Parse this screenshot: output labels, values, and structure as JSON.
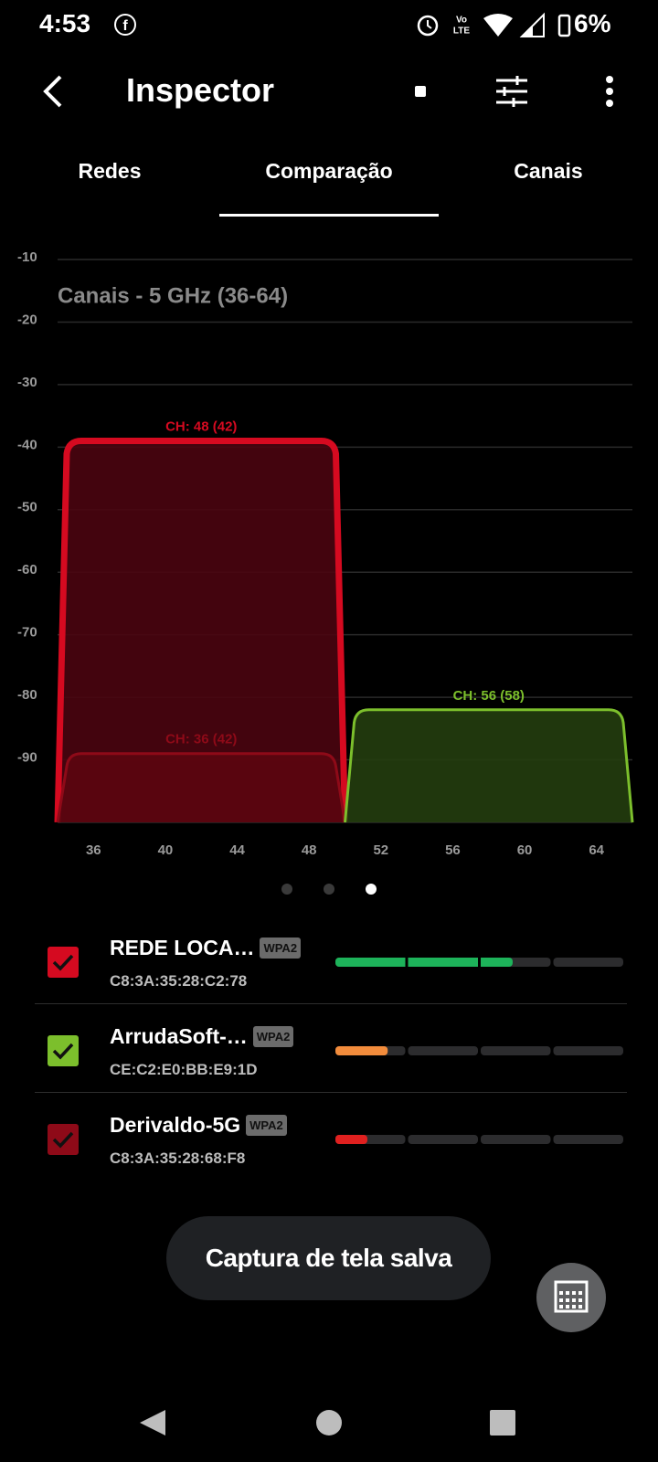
{
  "status_bar": {
    "time": "4:53",
    "battery": "6%"
  },
  "toolbar": {
    "title": "Inspector"
  },
  "tabs": {
    "items": [
      "Redes",
      "Comparação",
      "Canais"
    ],
    "selected": 1
  },
  "chart": {
    "type": "area",
    "title": "Canais - 5 GHz (36-64)",
    "ylim": [
      -100,
      -10
    ],
    "yticks": [
      -10,
      -20,
      -30,
      -40,
      -50,
      -60,
      -70,
      -80,
      -90
    ],
    "xlim": [
      34,
      66
    ],
    "xticks": [
      36,
      40,
      44,
      48,
      52,
      56,
      60,
      64
    ],
    "grid": true,
    "networks": [
      {
        "label": "CH: 48 (42)",
        "center_channel": 42,
        "width_channels": 16,
        "level": -39,
        "color": "#d50a20",
        "fill": "#4a0410"
      },
      {
        "label": "CH: 36 (42)",
        "center_channel": 42,
        "width_channels": 16,
        "level": -89,
        "color": "#8e0a18",
        "fill": "#5c0510"
      },
      {
        "label": "CH: 56 (58)",
        "center_channel": 58,
        "width_channels": 16,
        "level": -82,
        "color": "#7cbf2c",
        "fill": "#233d0e"
      }
    ]
  },
  "page_indicator": {
    "count": 3,
    "active": 2
  },
  "networks": [
    {
      "name": "REDE LOCA…",
      "security": "WPA2",
      "bssid": "C8:3A:35:28:C2:78",
      "signal": 61,
      "signal_color": "#1db35a",
      "check_color": "#d50a20"
    },
    {
      "name": "ArrudaSoft-…",
      "security": "WPA2",
      "bssid": "CE:C2:E0:BB:E9:1D",
      "signal": 18,
      "signal_color": "#f28c3c",
      "check_color": "#7cbf2c"
    },
    {
      "name": "Derivaldo-5G",
      "security": "WPA2",
      "bssid": "C8:3A:35:28:68:F8",
      "signal": 11,
      "signal_color": "#e0201f",
      "check_color": "#8e0a18"
    }
  ],
  "toast": "Captura de tela salva"
}
